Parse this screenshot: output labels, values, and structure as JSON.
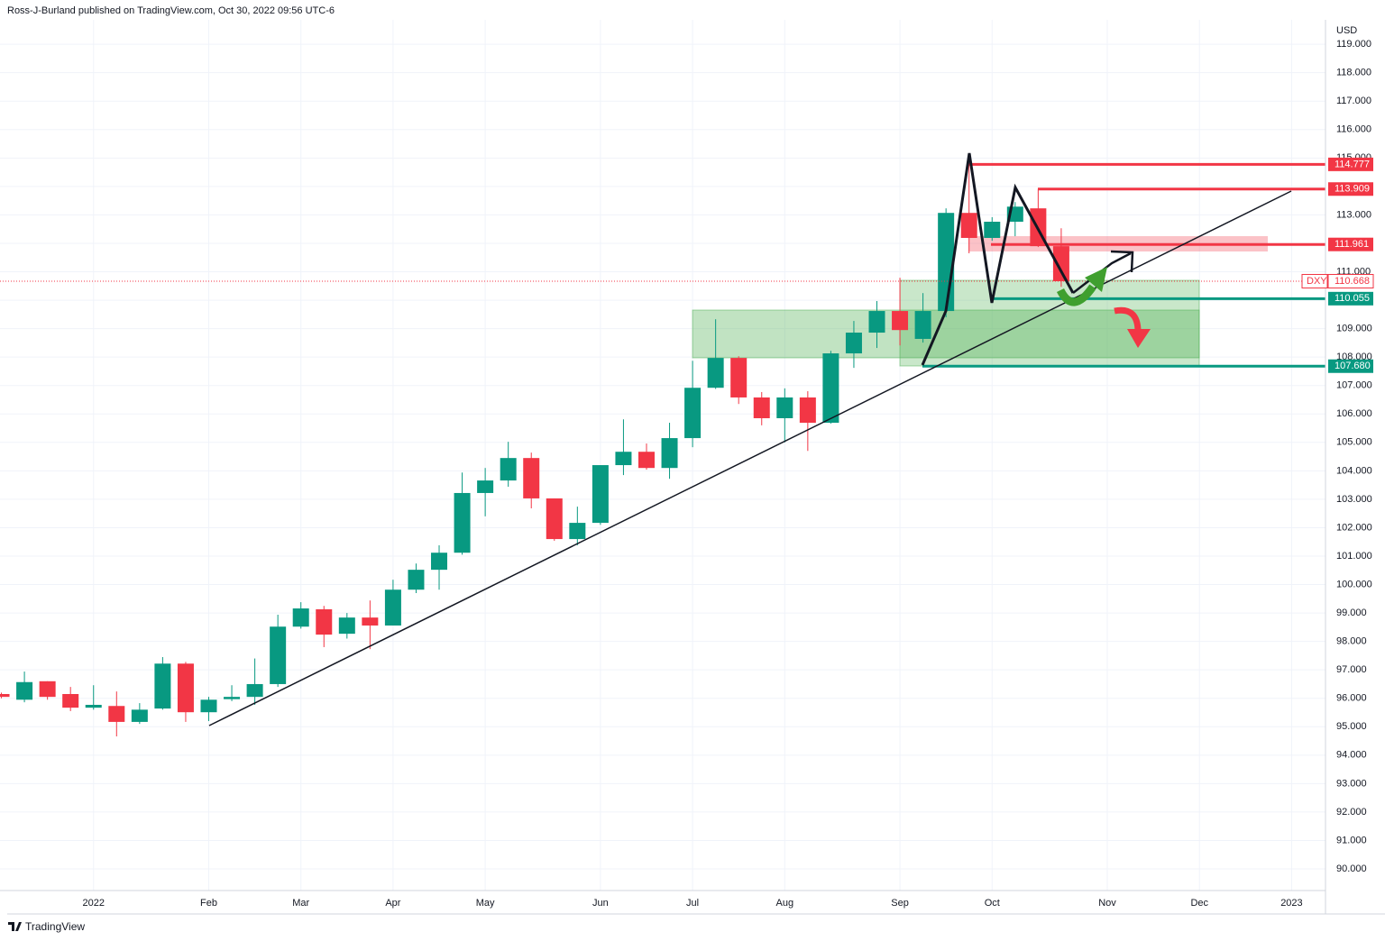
{
  "header": "Ross-J-Burland published on TradingView.com, Oct 30, 2022 09:56 UTC-6",
  "footer": "TradingView",
  "chart_data": {
    "type": "candlestick",
    "currency": "USD",
    "up_color": "#089981",
    "down_color": "#f23645",
    "grid": true,
    "open": [
      96.15,
      95.95,
      96.6,
      96.15,
      95.67,
      95.73,
      95.17,
      95.64,
      97.22,
      95.51,
      95.97,
      96.05,
      96.5,
      98.52,
      99.13,
      98.27,
      98.84,
      98.56,
      99.82,
      100.52,
      101.12,
      103.22,
      103.66,
      104.45,
      103.03,
      101.6,
      102.17,
      104.2,
      104.67,
      104.1,
      105.15,
      106.92,
      107.97,
      106.58,
      105.85,
      106.58,
      105.69,
      108.13,
      108.86,
      109.62,
      108.64,
      109.62,
      113.07,
      112.19,
      112.76,
      113.23,
      111.9
    ],
    "high": [
      96.2,
      96.94,
      96.6,
      96.4,
      96.46,
      96.24,
      95.83,
      97.45,
      97.28,
      96.05,
      96.46,
      97.4,
      98.94,
      99.38,
      99.25,
      99.0,
      99.44,
      100.17,
      100.74,
      101.38,
      103.94,
      104.1,
      105.02,
      104.64,
      103.03,
      102.74,
      104.2,
      105.81,
      104.96,
      105.69,
      107.87,
      109.33,
      108.03,
      106.77,
      106.9,
      106.8,
      108.22,
      109.27,
      109.97,
      110.79,
      110.25,
      113.23,
      114.78,
      112.92,
      113.45,
      113.91,
      112.53
    ],
    "low": [
      96.0,
      95.86,
      95.95,
      95.55,
      95.6,
      94.66,
      95.1,
      95.6,
      95.17,
      95.2,
      95.9,
      95.77,
      96.4,
      98.45,
      97.8,
      98.1,
      97.73,
      98.56,
      99.7,
      99.82,
      101.05,
      102.4,
      103.44,
      102.68,
      101.54,
      101.38,
      102.1,
      103.85,
      104.04,
      103.72,
      104.83,
      106.88,
      106.35,
      105.6,
      105.0,
      104.7,
      105.66,
      107.62,
      108.32,
      108.41,
      108.51,
      109.4,
      111.65,
      112.09,
      112.25,
      111.87,
      110.47
    ],
    "close": [
      96.05,
      96.57,
      96.05,
      95.67,
      95.77,
      95.17,
      95.6,
      97.22,
      95.51,
      95.95,
      96.05,
      96.5,
      98.52,
      99.16,
      98.24,
      98.84,
      98.56,
      99.82,
      100.52,
      101.12,
      103.22,
      103.66,
      104.45,
      103.03,
      101.6,
      102.17,
      104.2,
      104.67,
      104.1,
      105.15,
      106.92,
      107.97,
      106.58,
      105.85,
      106.58,
      105.69,
      108.13,
      108.86,
      109.62,
      108.95,
      109.62,
      113.07,
      112.19,
      112.76,
      113.29,
      111.9,
      110.668
    ],
    "xlim": [
      -0.06,
      57.47
    ],
    "xticks": [
      {
        "value": 4,
        "label": "2022"
      },
      {
        "value": 9,
        "label": "Feb"
      },
      {
        "value": 13,
        "label": "Mar"
      },
      {
        "value": 17,
        "label": "Apr"
      },
      {
        "value": 21,
        "label": "May"
      },
      {
        "value": 26,
        "label": "Jun"
      },
      {
        "value": 30,
        "label": "Jul"
      },
      {
        "value": 34,
        "label": "Aug"
      },
      {
        "value": 39,
        "label": "Sep"
      },
      {
        "value": 43,
        "label": "Oct"
      },
      {
        "value": 48,
        "label": "Nov"
      },
      {
        "value": 52,
        "label": "Dec"
      },
      {
        "value": 56,
        "label": "2023"
      }
    ],
    "ylim": [
      89.24,
      119.86
    ],
    "yticks": [
      {
        "value": 90,
        "label": "90.000"
      },
      {
        "value": 91,
        "label": "91.000"
      },
      {
        "value": 92,
        "label": "92.000"
      },
      {
        "value": 93,
        "label": "93.000"
      },
      {
        "value": 94,
        "label": "94.000"
      },
      {
        "value": 95,
        "label": "95.000"
      },
      {
        "value": 96,
        "label": "96.000"
      },
      {
        "value": 97,
        "label": "97.000"
      },
      {
        "value": 98,
        "label": "98.000"
      },
      {
        "value": 99,
        "label": "99.000"
      },
      {
        "value": 100,
        "label": "100.000"
      },
      {
        "value": 101,
        "label": "101.000"
      },
      {
        "value": 102,
        "label": "102.000"
      },
      {
        "value": 103,
        "label": "103.000"
      },
      {
        "value": 104,
        "label": "104.000"
      },
      {
        "value": 105,
        "label": "105.000"
      },
      {
        "value": 106,
        "label": "106.000"
      },
      {
        "value": 107,
        "label": "107.000"
      },
      {
        "value": 108,
        "label": "108.000"
      },
      {
        "value": 109,
        "label": "109.000"
      },
      {
        "value": 110,
        "label": "110.000"
      },
      {
        "value": 111,
        "label": "111.000"
      },
      {
        "value": 112,
        "label": "112.000"
      },
      {
        "value": 113,
        "label": "113.000"
      },
      {
        "value": 114,
        "label": "114.000"
      },
      {
        "value": 115,
        "label": "115.000"
      },
      {
        "value": 116,
        "label": "116.000"
      },
      {
        "value": 117,
        "label": "117.000"
      },
      {
        "value": 118,
        "label": "118.000"
      },
      {
        "value": 119,
        "label": "119.000"
      }
    ],
    "price_lines": [
      {
        "value": 114.777,
        "color": "#f23645"
      },
      {
        "value": 113.909,
        "color": "#f23645"
      },
      {
        "value": 111.961,
        "color": "#f23645"
      },
      {
        "value": 110.055,
        "color": "#089981"
      },
      {
        "value": 107.68,
        "label": "107.680",
        "color": "#089981"
      }
    ],
    "last_price": {
      "symbol": "DXY",
      "value": 110.668,
      "color": "#f23645"
    }
  }
}
